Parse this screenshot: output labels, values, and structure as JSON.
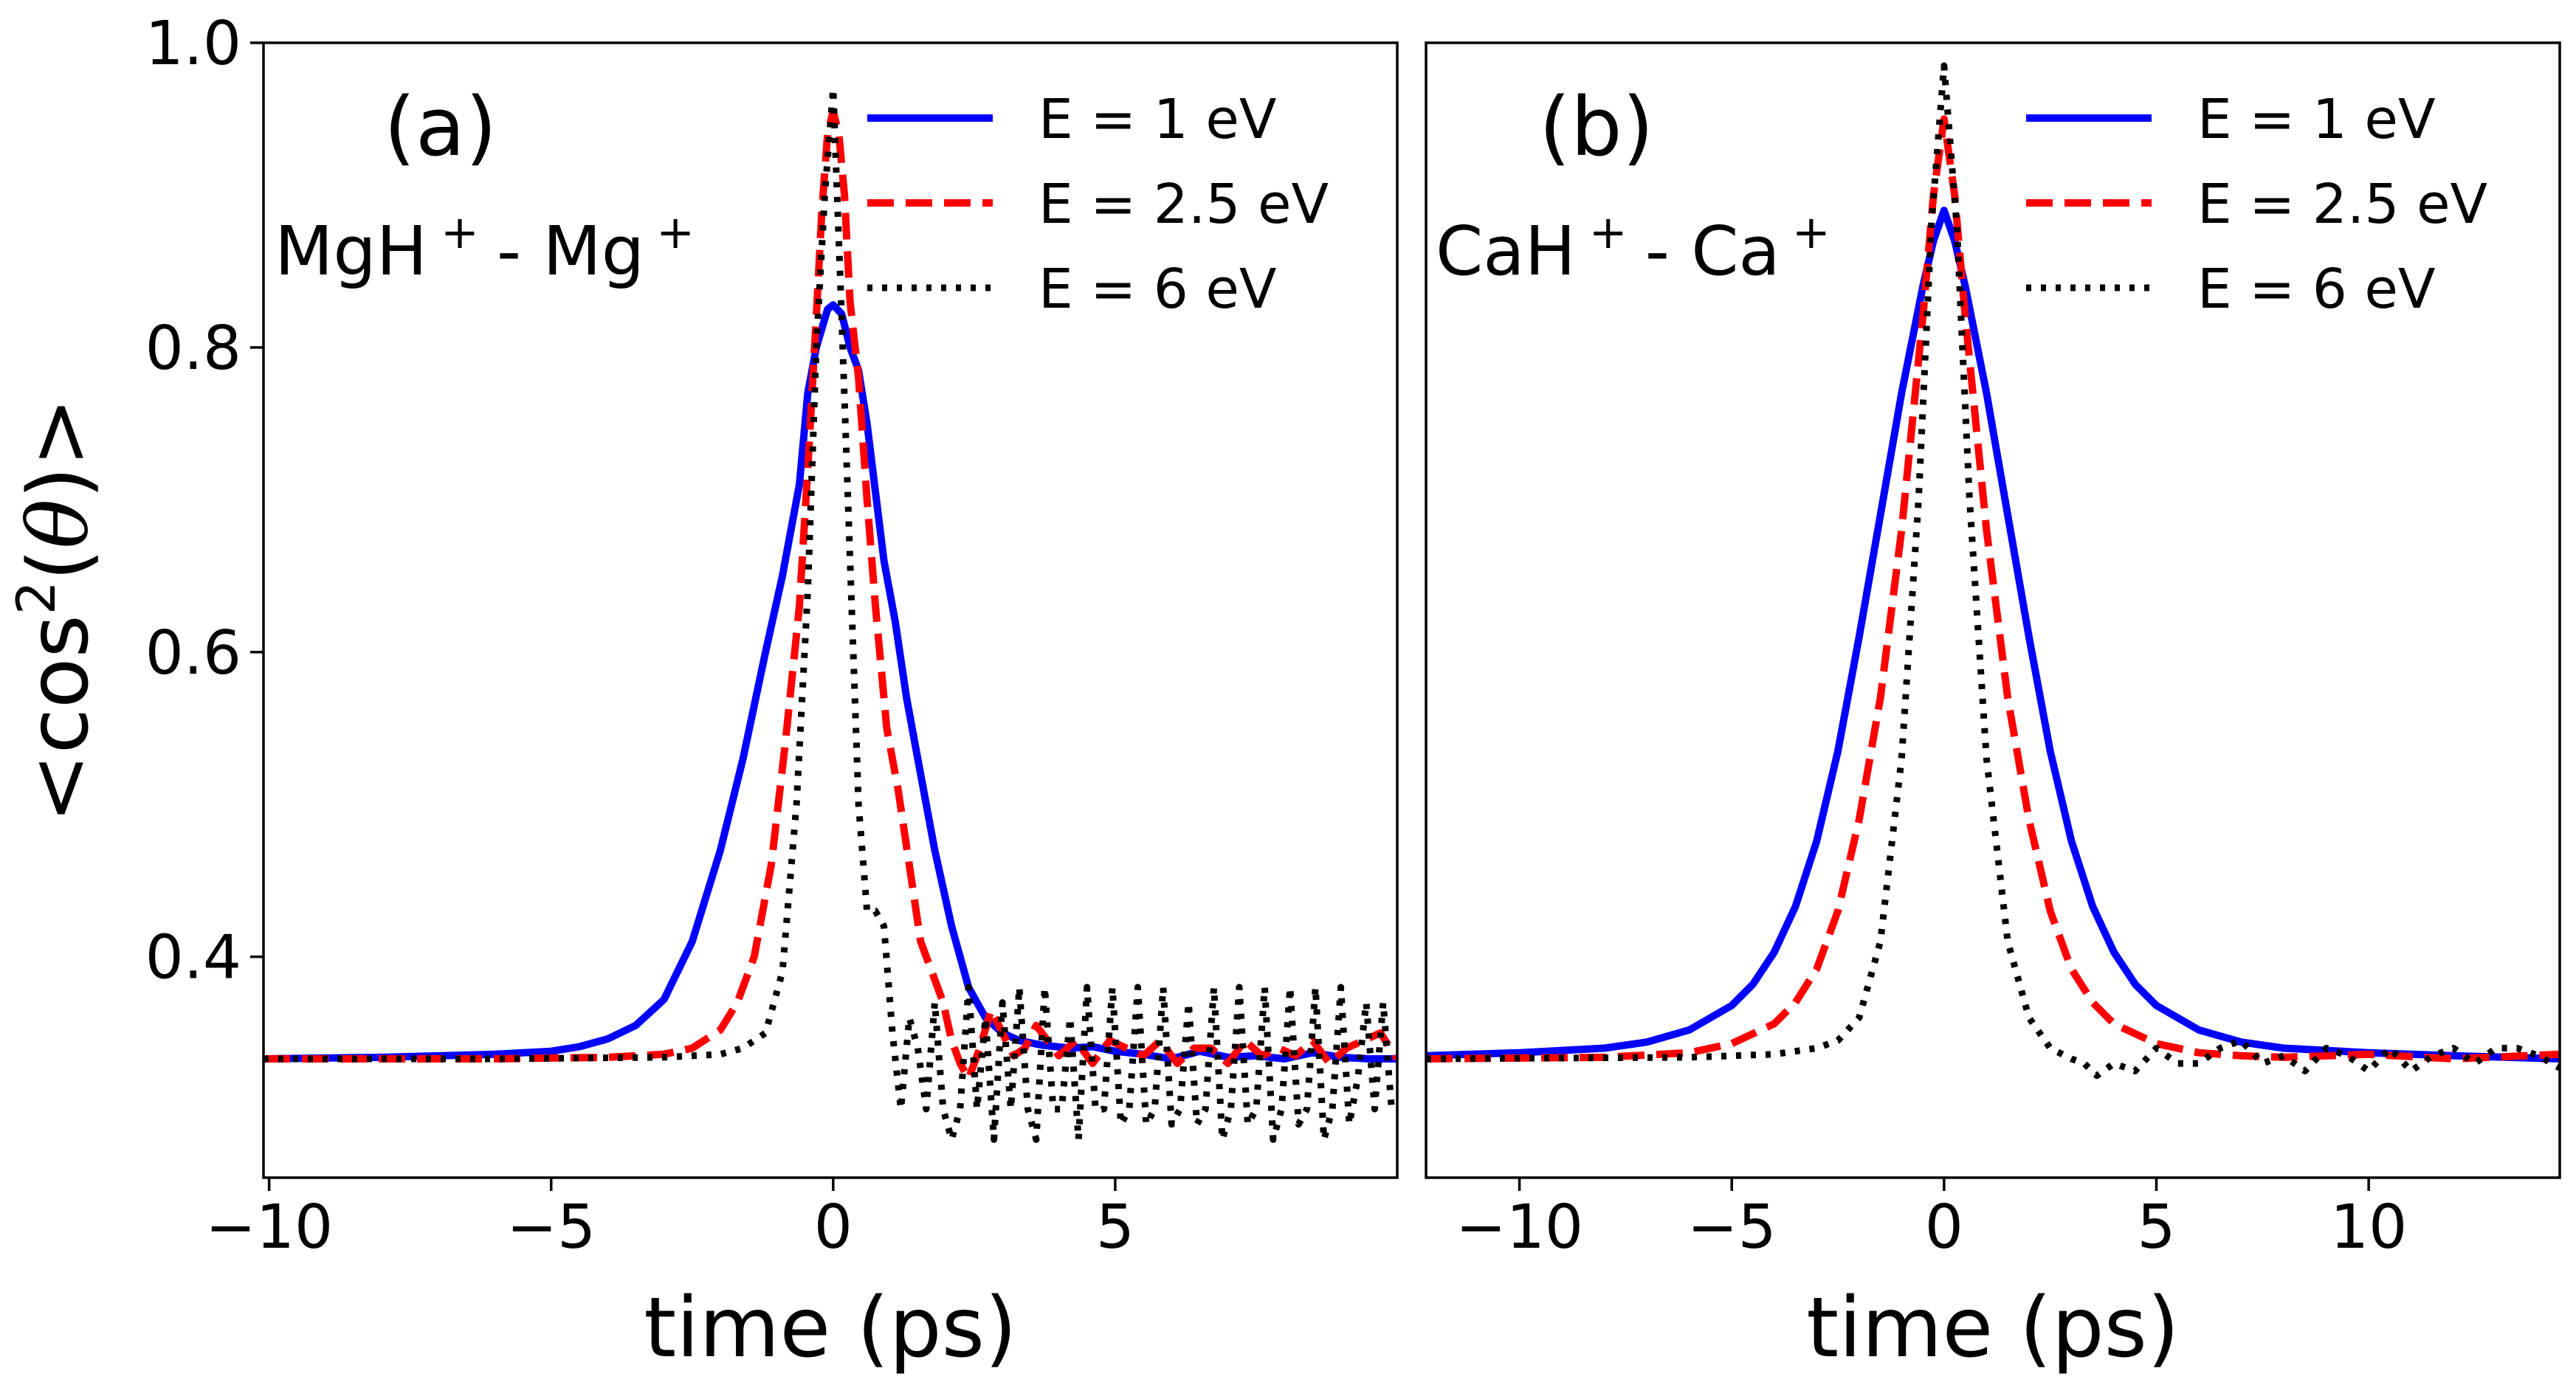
{
  "chart_data": [
    {
      "panel": "(a)",
      "type": "line",
      "annotation": {
        "label": "(a)",
        "species1": "MgH",
        "species2": "Mg",
        "charge": "+",
        "separator": "-"
      },
      "xlabel": "time (ps)",
      "ylabel": {
        "prefix": "<cos",
        "power": "2",
        "open": "(",
        "theta": "θ",
        "close": ")",
        "suffix": ">"
      },
      "xlim": [
        -10.1,
        10
      ],
      "ylim": [
        0.255,
        1.0
      ],
      "xticks": [
        -10,
        -5,
        0,
        5
      ],
      "xtick_labels": [
        "−10",
        "−5",
        "0",
        "5"
      ],
      "yticks": [
        0.4,
        0.6,
        0.8,
        1.0
      ],
      "ytick_labels": [
        "0.4",
        "0.6",
        "0.8",
        "1.0"
      ],
      "legend_position": "top-right",
      "series": [
        {
          "name": "E = 1 eV",
          "color": "#0000ff",
          "style": "solid",
          "x": [
            -10.1,
            -8,
            -6,
            -5,
            -4.5,
            -4,
            -3.5,
            -3,
            -2.5,
            -2,
            -1.6,
            -1.2,
            -0.9,
            -0.6,
            -0.45,
            -0.3,
            -0.1,
            0,
            0.15,
            0.3,
            0.45,
            0.6,
            0.75,
            0.9,
            1.1,
            1.3,
            1.5,
            1.8,
            2.1,
            2.4,
            2.7,
            3,
            3.3,
            3.7,
            4.2,
            4.6,
            5,
            5.5,
            6,
            6.5,
            7,
            7.5,
            8,
            8.5,
            9,
            9.5,
            10
          ],
          "y": [
            0.333,
            0.334,
            0.336,
            0.338,
            0.341,
            0.346,
            0.355,
            0.372,
            0.41,
            0.47,
            0.53,
            0.6,
            0.65,
            0.71,
            0.77,
            0.8,
            0.825,
            0.828,
            0.822,
            0.8,
            0.785,
            0.75,
            0.705,
            0.66,
            0.62,
            0.57,
            0.53,
            0.47,
            0.42,
            0.38,
            0.36,
            0.35,
            0.345,
            0.342,
            0.34,
            0.341,
            0.338,
            0.336,
            0.333,
            0.338,
            0.334,
            0.335,
            0.333,
            0.337,
            0.334,
            0.333,
            0.333
          ]
        },
        {
          "name": "E = 2.5 eV",
          "color": "#ff0000",
          "style": "dashed",
          "x": [
            -10.1,
            -6,
            -4,
            -3,
            -2.5,
            -2,
            -1.7,
            -1.4,
            -1.1,
            -0.85,
            -0.6,
            -0.45,
            -0.3,
            -0.2,
            -0.1,
            0,
            0.1,
            0.2,
            0.3,
            0.45,
            0.6,
            0.75,
            0.95,
            1.15,
            1.35,
            1.55,
            1.75,
            1.95,
            2.1,
            2.25,
            2.4,
            2.6,
            2.8,
            3,
            3.2,
            3.4,
            3.6,
            3.8,
            4,
            4.3,
            4.6,
            4.9,
            5.2,
            5.5,
            5.8,
            6.1,
            6.4,
            6.7,
            7,
            7.3,
            7.6,
            7.9,
            8.2,
            8.5,
            8.8,
            9.1,
            9.4,
            9.7,
            10
          ],
          "y": [
            0.333,
            0.333,
            0.334,
            0.336,
            0.34,
            0.352,
            0.37,
            0.4,
            0.46,
            0.54,
            0.63,
            0.72,
            0.82,
            0.89,
            0.94,
            0.955,
            0.94,
            0.9,
            0.83,
            0.78,
            0.7,
            0.63,
            0.55,
            0.51,
            0.46,
            0.41,
            0.39,
            0.37,
            0.345,
            0.33,
            0.32,
            0.34,
            0.365,
            0.35,
            0.335,
            0.34,
            0.355,
            0.345,
            0.335,
            0.345,
            0.33,
            0.345,
            0.34,
            0.335,
            0.345,
            0.33,
            0.34,
            0.34,
            0.33,
            0.345,
            0.335,
            0.34,
            0.335,
            0.345,
            0.33,
            0.34,
            0.345,
            0.35,
            0.333
          ]
        },
        {
          "name": "E = 6 eV",
          "color": "#000000",
          "style": "dotted",
          "x": [
            -10.1,
            -6,
            -3,
            -2,
            -1.6,
            -1.2,
            -0.9,
            -0.65,
            -0.45,
            -0.3,
            -0.15,
            0,
            0.15,
            0.3,
            0.45,
            0.6,
            0.75,
            0.9,
            1.05,
            1.2,
            1.35,
            1.5,
            1.65,
            1.8,
            1.95,
            2.1,
            2.25,
            2.4,
            2.55,
            2.7,
            2.85,
            3,
            3.15,
            3.3,
            3.45,
            3.6,
            3.75,
            3.9,
            4.05,
            4.2,
            4.35,
            4.5,
            4.65,
            4.8,
            4.95,
            5.1,
            5.25,
            5.4,
            5.55,
            5.7,
            5.85,
            6,
            6.15,
            6.3,
            6.45,
            6.6,
            6.75,
            6.9,
            7.05,
            7.2,
            7.35,
            7.5,
            7.65,
            7.8,
            7.95,
            8.1,
            8.25,
            8.4,
            8.55,
            8.7,
            8.85,
            9,
            9.15,
            9.3,
            9.45,
            9.6,
            9.75,
            9.9,
            10
          ],
          "y": [
            0.333,
            0.333,
            0.334,
            0.336,
            0.34,
            0.35,
            0.39,
            0.5,
            0.64,
            0.8,
            0.9,
            0.97,
            0.82,
            0.66,
            0.5,
            0.43,
            0.43,
            0.42,
            0.35,
            0.3,
            0.36,
            0.34,
            0.3,
            0.37,
            0.3,
            0.28,
            0.3,
            0.38,
            0.3,
            0.36,
            0.28,
            0.37,
            0.3,
            0.38,
            0.3,
            0.28,
            0.38,
            0.3,
            0.3,
            0.36,
            0.28,
            0.38,
            0.3,
            0.3,
            0.38,
            0.29,
            0.3,
            0.38,
            0.29,
            0.3,
            0.38,
            0.29,
            0.3,
            0.37,
            0.29,
            0.3,
            0.38,
            0.28,
            0.3,
            0.38,
            0.29,
            0.3,
            0.38,
            0.28,
            0.3,
            0.38,
            0.29,
            0.3,
            0.38,
            0.28,
            0.3,
            0.38,
            0.29,
            0.32,
            0.37,
            0.3,
            0.37,
            0.3,
            0.3
          ]
        }
      ]
    },
    {
      "panel": "(b)",
      "type": "line",
      "annotation": {
        "label": "(b)",
        "species1": "CaH",
        "species2": "Ca",
        "charge": "+",
        "separator": "-"
      },
      "xlabel": "time (ps)",
      "xlim": [
        -12.2,
        14.5
      ],
      "ylim": [
        0.255,
        1.0
      ],
      "xticks": [
        -10,
        -5,
        0,
        5,
        10
      ],
      "xtick_labels": [
        "−10",
        "−5",
        "0",
        "5",
        "10"
      ],
      "legend_position": "top-right",
      "series": [
        {
          "name": "E = 1 eV",
          "color": "#0000ff",
          "style": "solid",
          "x": [
            -12.2,
            -10,
            -8,
            -7,
            -6,
            -5,
            -4.5,
            -4,
            -3.5,
            -3,
            -2.5,
            -2,
            -1.5,
            -1,
            -0.5,
            -0.25,
            0,
            0.25,
            0.5,
            1,
            1.5,
            2,
            2.5,
            3,
            3.5,
            4,
            4.5,
            5,
            6,
            7,
            8,
            10,
            12,
            14.5
          ],
          "y": [
            0.335,
            0.337,
            0.34,
            0.344,
            0.352,
            0.368,
            0.382,
            0.403,
            0.433,
            0.476,
            0.535,
            0.61,
            0.69,
            0.77,
            0.84,
            0.87,
            0.89,
            0.87,
            0.84,
            0.77,
            0.69,
            0.61,
            0.535,
            0.476,
            0.433,
            0.403,
            0.382,
            0.368,
            0.352,
            0.344,
            0.34,
            0.337,
            0.335,
            0.333
          ]
        },
        {
          "name": "E = 2.5 eV",
          "color": "#ff0000",
          "style": "dashed",
          "x": [
            -12.2,
            -8,
            -6,
            -5,
            -4,
            -3.5,
            -3,
            -2.5,
            -2,
            -1.5,
            -1,
            -0.5,
            -0.25,
            0,
            0.25,
            0.5,
            1,
            1.5,
            2,
            2.5,
            3,
            3.5,
            4,
            5,
            6,
            7,
            8,
            10,
            12,
            14.5
          ],
          "y": [
            0.333,
            0.334,
            0.337,
            0.343,
            0.356,
            0.37,
            0.392,
            0.43,
            0.49,
            0.57,
            0.68,
            0.82,
            0.9,
            0.95,
            0.9,
            0.82,
            0.68,
            0.57,
            0.49,
            0.43,
            0.392,
            0.37,
            0.356,
            0.343,
            0.337,
            0.335,
            0.334,
            0.336,
            0.333,
            0.336
          ]
        },
        {
          "name": "E = 6 eV",
          "color": "#000000",
          "style": "dotted",
          "x": [
            -12.2,
            -6,
            -4,
            -3,
            -2.5,
            -2,
            -1.5,
            -1,
            -0.6,
            -0.3,
            0,
            0.3,
            0.6,
            1,
            1.5,
            2,
            2.5,
            3,
            3.3,
            3.6,
            4,
            4.5,
            5,
            5.5,
            6,
            6.5,
            7,
            7.5,
            8,
            8.5,
            9,
            9.5,
            10,
            10.5,
            11,
            11.5,
            12,
            12.5,
            13,
            13.5,
            14,
            14.5
          ],
          "y": [
            0.333,
            0.334,
            0.336,
            0.34,
            0.345,
            0.36,
            0.41,
            0.53,
            0.7,
            0.88,
            0.985,
            0.88,
            0.7,
            0.53,
            0.41,
            0.36,
            0.34,
            0.333,
            0.33,
            0.322,
            0.33,
            0.325,
            0.34,
            0.33,
            0.33,
            0.34,
            0.345,
            0.33,
            0.335,
            0.325,
            0.34,
            0.335,
            0.325,
            0.34,
            0.325,
            0.335,
            0.34,
            0.33,
            0.34,
            0.34,
            0.335,
            0.327
          ]
        }
      ]
    }
  ]
}
